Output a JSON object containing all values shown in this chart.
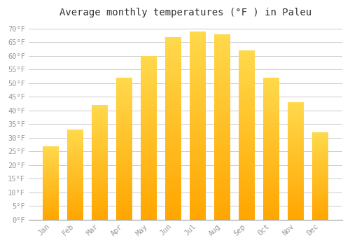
{
  "title": "Average monthly temperatures (°F ) in Paleu",
  "months": [
    "Jan",
    "Feb",
    "Mar",
    "Apr",
    "May",
    "Jun",
    "Jul",
    "Aug",
    "Sep",
    "Oct",
    "Nov",
    "Dec"
  ],
  "values": [
    27,
    33,
    42,
    52,
    60,
    67,
    69,
    68,
    62,
    52,
    43,
    32
  ],
  "bar_color_bottom": "#FFB300",
  "bar_color_top": "#FFD966",
  "background_color": "#FFFFFF",
  "plot_bg_color": "#FFFFFF",
  "grid_color": "#CCCCCC",
  "ylim": [
    0,
    72
  ],
  "yticks": [
    0,
    5,
    10,
    15,
    20,
    25,
    30,
    35,
    40,
    45,
    50,
    55,
    60,
    65,
    70
  ],
  "title_fontsize": 10,
  "tick_fontsize": 7.5,
  "title_color": "#333333",
  "tick_color": "#999999"
}
